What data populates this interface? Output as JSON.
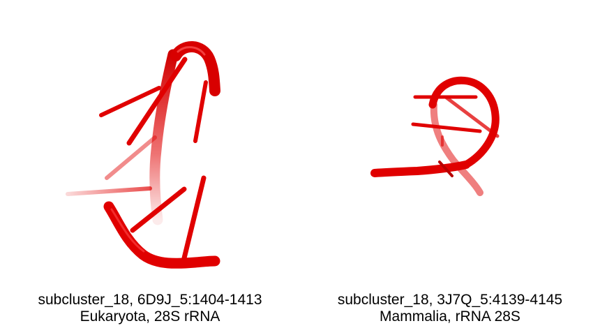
{
  "colors": {
    "background": "#ffffff",
    "rna": "#e00000",
    "rna_dark": "#c80000",
    "rna_light": "#ff3a3a",
    "caption_text": "#000000"
  },
  "panels": [
    {
      "caption_line1": "subcluster_18, 6D9J_5:1404-1413",
      "caption_line2": "Eukaryota, 28S rRNA"
    },
    {
      "caption_line1": "subcluster_18, 3J7Q_5:4139-4145",
      "caption_line2": "Mammalia, rRNA 28S"
    }
  ]
}
